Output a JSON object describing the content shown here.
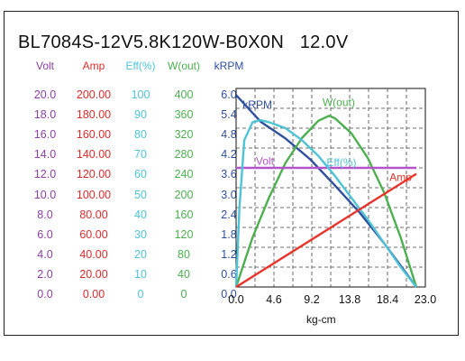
{
  "chart_data": {
    "type": "line",
    "title": "BL7084S-12V5.8K120W-B0X0N",
    "voltage_label": "12.0V",
    "xlabel": "kg-cm",
    "x_ticks": [
      "0.0",
      "4.6",
      "9.2",
      "13.8",
      "18.4",
      "23.0"
    ],
    "xlim": [
      0,
      23
    ],
    "y_axes": [
      {
        "name": "Volt",
        "color": "#8b3fa5",
        "ticks": [
          "20.0",
          "18.0",
          "16.0",
          "14.0",
          "12.0",
          "10.0",
          "8.0",
          "6.0",
          "4.0",
          "2.0",
          "0.0"
        ],
        "range": [
          0,
          20
        ]
      },
      {
        "name": "Amp",
        "color": "#dd2b2b",
        "ticks": [
          "200.00",
          "180.00",
          "160.00",
          "140.00",
          "120.00",
          "100.00",
          "80.00",
          "60.00",
          "40.00",
          "20.00",
          "0.00"
        ],
        "range": [
          0,
          200
        ]
      },
      {
        "name": "Eff(%)",
        "color": "#4fc3d6",
        "ticks": [
          "100",
          "90",
          "80",
          "70",
          "60",
          "50",
          "40",
          "30",
          "20",
          "10",
          "0"
        ],
        "range": [
          0,
          100
        ]
      },
      {
        "name": "W(out)",
        "color": "#4caf50",
        "ticks": [
          "400",
          "360",
          "320",
          "280",
          "240",
          "200",
          "160",
          "120",
          "80",
          "40",
          "0"
        ],
        "range": [
          0,
          400
        ]
      },
      {
        "name": "kRPM",
        "color": "#2f4f9f",
        "ticks": [
          "6.0",
          "5.4",
          "4.8",
          "4.2",
          "3.6",
          "3.0",
          "2.4",
          "1.8",
          "1.2",
          "0.6",
          "0.0"
        ],
        "range": [
          0,
          6
        ]
      }
    ],
    "series": [
      {
        "name": "kRPM",
        "color": "#2f4f9f",
        "x": [
          0,
          3,
          6,
          9,
          12,
          15,
          18,
          21.9
        ],
        "y": [
          5.8,
          4.99,
          4.49,
          3.86,
          3.07,
          2.25,
          1.32,
          0
        ]
      },
      {
        "name": "W(out)",
        "color": "#4caf50",
        "x": [
          0,
          2,
          4,
          6,
          8,
          10,
          11.3,
          12,
          14,
          16,
          18,
          20,
          21.9
        ],
        "y": [
          0,
          100,
          180,
          250,
          300,
          335,
          345,
          340,
          310,
          260,
          190,
          100,
          0
        ]
      },
      {
        "name": "Volt",
        "color": "#b353c9",
        "x": [
          0,
          21.9
        ],
        "y": [
          12.0,
          12.0
        ]
      },
      {
        "name": "Eff(%)",
        "color": "#4fc3d6",
        "x": [
          0,
          0.4,
          1,
          2,
          3,
          4,
          6,
          8,
          10,
          12,
          14,
          16,
          18,
          20,
          21.9
        ],
        "y": [
          0,
          40,
          74,
          83,
          84,
          83,
          80,
          74,
          66,
          56,
          45,
          34,
          22,
          10,
          0
        ]
      },
      {
        "name": "Amp",
        "color": "#e8332a",
        "x": [
          0,
          21.9
        ],
        "y": [
          0,
          114
        ]
      }
    ]
  }
}
